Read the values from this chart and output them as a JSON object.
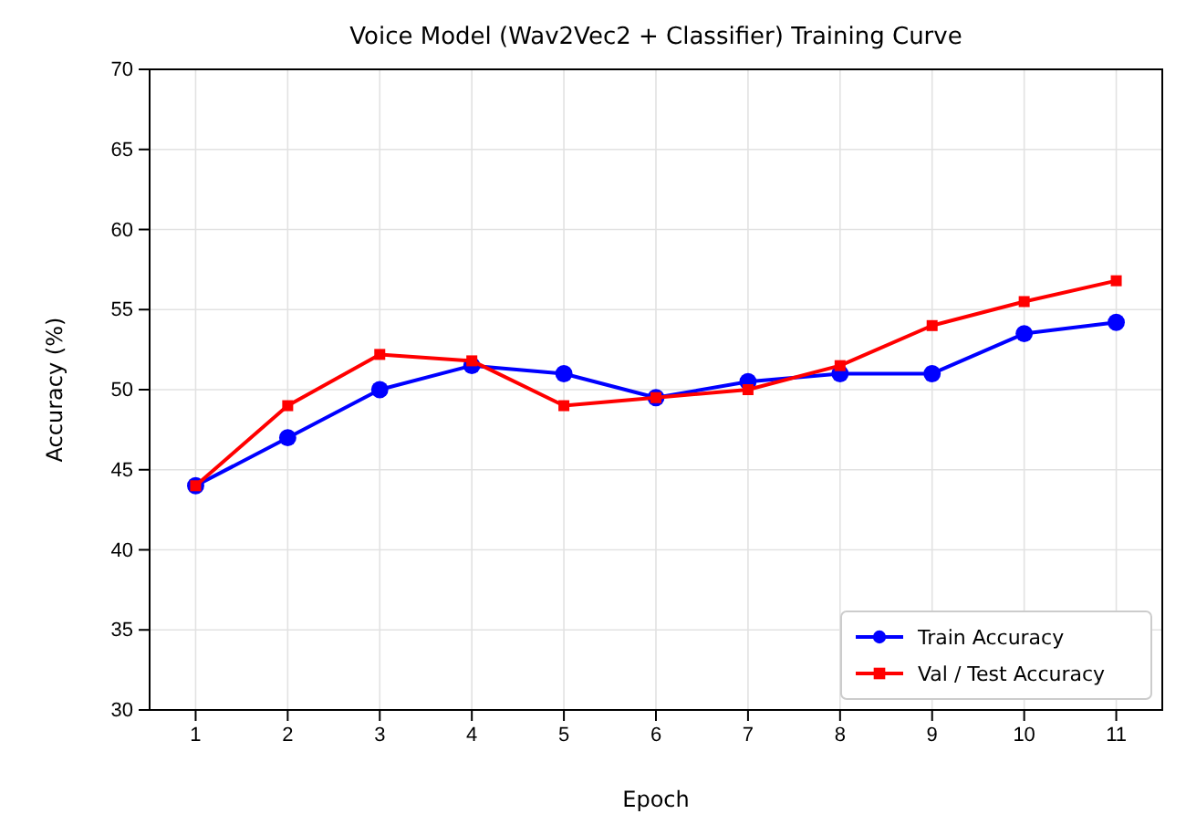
{
  "chart_data": {
    "type": "line",
    "title": "Voice Model (Wav2Vec2 + Classifier) Training Curve",
    "xlabel": "Epoch",
    "ylabel": "Accuracy (%)",
    "x": [
      1,
      2,
      3,
      4,
      5,
      6,
      7,
      8,
      9,
      10,
      11
    ],
    "xlim": [
      0.5,
      11.5
    ],
    "xticks": [
      1,
      2,
      3,
      4,
      5,
      6,
      7,
      8,
      9,
      10,
      11
    ],
    "ylim": [
      30,
      70
    ],
    "yticks": [
      30,
      35,
      40,
      45,
      50,
      55,
      60,
      65,
      70
    ],
    "grid": true,
    "legend": "bottom right",
    "line_style": "solid",
    "series": [
      {
        "name": "Train Accuracy",
        "color": "#0000ff",
        "marker": "circle",
        "values": [
          44,
          47,
          50,
          51.5,
          51,
          49.5,
          50.5,
          51,
          51,
          53.5,
          54.2
        ]
      },
      {
        "name": "Val / Test Accuracy",
        "color": "#ff0000",
        "marker": "square",
        "values": [
          44,
          49,
          52.2,
          51.8,
          49,
          49.5,
          50,
          51.5,
          54,
          55.5,
          56.8
        ]
      }
    ]
  }
}
